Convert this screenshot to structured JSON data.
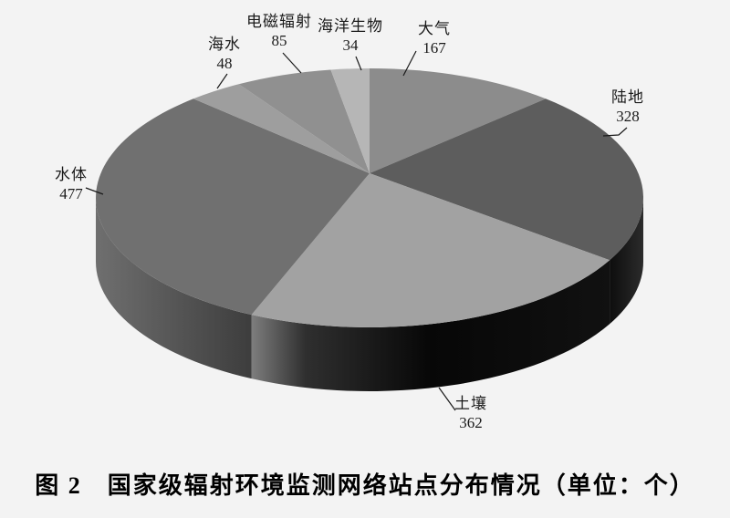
{
  "figure": {
    "caption": "图 2　国家级辐射环境监测网络站点分布情况（单位：个）"
  },
  "chart_data": {
    "type": "pie",
    "style": "3d-pie",
    "figure_label": "图 2",
    "title": "国家级辐射环境监测网络站点分布情况",
    "unit": "个",
    "start_angle": "top",
    "direction": "clockwise",
    "legend_position": "none",
    "background": "#f3f3f3",
    "categories": [
      "大气",
      "陆地",
      "土壤",
      "水体",
      "海水",
      "电磁辐射",
      "海洋生物"
    ],
    "values": [
      167,
      328,
      362,
      477,
      48,
      85,
      34
    ],
    "slices": [
      {
        "id": "atmosphere",
        "label": "大气",
        "value": 167,
        "color": "#8c8c8c"
      },
      {
        "id": "land",
        "label": "陆地",
        "value": 328,
        "color": "#5d5d5d"
      },
      {
        "id": "soil",
        "label": "土壤",
        "value": 362,
        "color": "#a2a2a2"
      },
      {
        "id": "water",
        "label": "水体",
        "value": 477,
        "color": "#707070"
      },
      {
        "id": "seawater",
        "label": "海水",
        "value": 48,
        "color": "#9e9e9e"
      },
      {
        "id": "electromagnetic-radiation",
        "label": "电磁辐射",
        "value": 85,
        "color": "#909090"
      },
      {
        "id": "marine-life",
        "label": "海洋生物",
        "value": 34,
        "color": "#b6b6b6"
      }
    ]
  }
}
